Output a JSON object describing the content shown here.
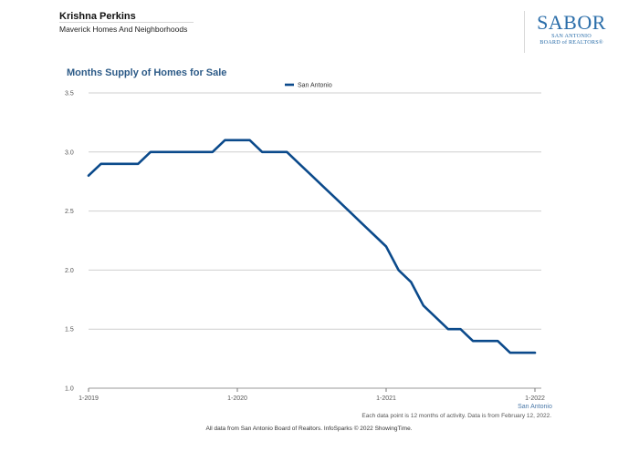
{
  "agent": {
    "name": "Krishna Perkins",
    "company": "Maverick Homes And Neighborhoods"
  },
  "logo": {
    "word": "SABOR",
    "line1": "SAN ANTONIO",
    "line2": "BOARD of REALTORS®",
    "color": "#2a6da9"
  },
  "colors": {
    "series": "#0b4a8b",
    "title": "#2c5a87",
    "grid": "#cfcfcf"
  },
  "chart_data": {
    "type": "line",
    "title": "Months Supply of Homes for Sale",
    "xlabel": "",
    "ylabel": "",
    "ylim": [
      1.0,
      3.5
    ],
    "yticks": [
      "1.0",
      "1.5",
      "2.0",
      "2.5",
      "3.0",
      "3.5"
    ],
    "xticks": [
      {
        "index": 0,
        "label": "1-2019"
      },
      {
        "index": 12,
        "label": "1-2020"
      },
      {
        "index": 24,
        "label": "1-2021"
      },
      {
        "index": 36,
        "label": "1-2022"
      }
    ],
    "last_tick_sublabel": "San Antonio",
    "legend": "top-center",
    "series": [
      {
        "name": "San Antonio",
        "values": [
          2.8,
          2.9,
          2.9,
          2.9,
          2.9,
          3.0,
          3.0,
          3.0,
          3.0,
          3.0,
          3.0,
          3.1,
          3.1,
          3.1,
          3.0,
          3.0,
          3.0,
          2.9,
          2.8,
          2.7,
          2.6,
          2.5,
          2.4,
          2.3,
          2.2,
          2.0,
          1.9,
          1.7,
          1.6,
          1.5,
          1.5,
          1.4,
          1.4,
          1.4,
          1.3,
          1.3,
          1.3
        ]
      }
    ]
  },
  "footnote": "Each data point is 12 months of activity. Data is from February 12, 2022.",
  "credit": "All data from San Antonio Board of Realtors. InfoSparks © 2022 ShowingTime."
}
